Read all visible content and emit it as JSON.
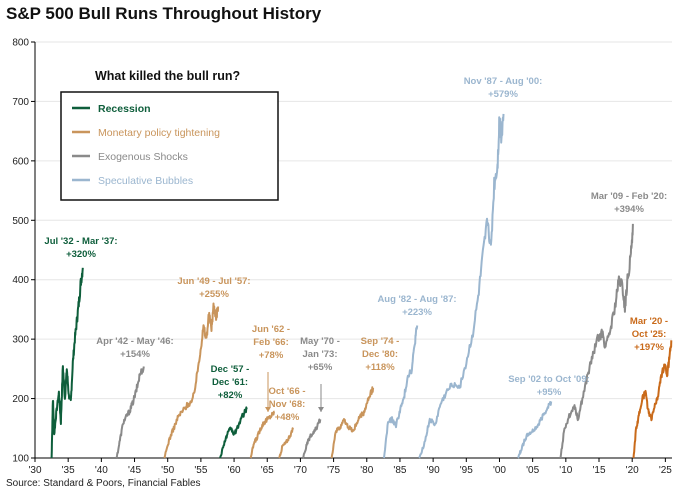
{
  "title": "S&P 500 Bull Runs Throughout History",
  "source": "Source: Standard & Poors, Financial Fables",
  "colors": {
    "recession": "#0e5e3b",
    "monetary": "#c9955c",
    "exogenous": "#8a8a8a",
    "bubble": "#9bb6cf",
    "current": "#c96a1a",
    "axis": "#000000",
    "text": "#222222"
  },
  "legend": {
    "title": "What killed the bull run?",
    "items": [
      {
        "label": "Recession",
        "color": "#0e5e3b"
      },
      {
        "label": "Monetary policy tightening",
        "color": "#c9955c"
      },
      {
        "label": "Exogenous Shocks",
        "color": "#8a8a8a"
      },
      {
        "label": "Speculative Bubbles",
        "color": "#9bb6cf"
      }
    ]
  },
  "chart_data": {
    "type": "line",
    "title": "S&P 500 Bull Runs Throughout History",
    "xlabel": "",
    "ylabel": "",
    "xlim": [
      1930,
      2026
    ],
    "ylim": [
      100,
      800
    ],
    "y_ticks": [
      100,
      200,
      300,
      400,
      500,
      600,
      700,
      800
    ],
    "x_ticks": [
      {
        "year": 1930,
        "label": "'30"
      },
      {
        "year": 1935,
        "label": "'35"
      },
      {
        "year": 1940,
        "label": "'40"
      },
      {
        "year": 1945,
        "label": "'45"
      },
      {
        "year": 1950,
        "label": "'50"
      },
      {
        "year": 1955,
        "label": "'55"
      },
      {
        "year": 1960,
        "label": "'60"
      },
      {
        "year": 1965,
        "label": "'65"
      },
      {
        "year": 1970,
        "label": "'70"
      },
      {
        "year": 1975,
        "label": "'75"
      },
      {
        "year": 1980,
        "label": "'80"
      },
      {
        "year": 1985,
        "label": "'85"
      },
      {
        "year": 1990,
        "label": "'90"
      },
      {
        "year": 1995,
        "label": "'95"
      },
      {
        "year": 2000,
        "label": "'00"
      },
      {
        "year": 2005,
        "label": "'05"
      },
      {
        "year": 2010,
        "label": "'10"
      },
      {
        "year": 2015,
        "label": "'15"
      },
      {
        "year": 2020,
        "label": "'20"
      },
      {
        "year": 2025,
        "label": "'25"
      }
    ],
    "series": [
      {
        "name": "Jul '32 - Mar '37",
        "gain": "+320%",
        "cause": "recession",
        "points": [
          [
            1932.5,
            100
          ],
          [
            1932.7,
            200
          ],
          [
            1932.9,
            140
          ],
          [
            1933.2,
            175
          ],
          [
            1933.6,
            210
          ],
          [
            1933.9,
            160
          ],
          [
            1934.2,
            255
          ],
          [
            1934.5,
            200
          ],
          [
            1934.8,
            250
          ],
          [
            1935.1,
            205
          ],
          [
            1935.4,
            195
          ],
          [
            1935.7,
            260
          ],
          [
            1936.0,
            300
          ],
          [
            1936.3,
            330
          ],
          [
            1936.6,
            360
          ],
          [
            1936.9,
            395
          ],
          [
            1937.2,
            420
          ]
        ]
      },
      {
        "name": "Apr '42 - May '46",
        "gain": "+154%",
        "cause": "exogenous",
        "points": [
          [
            1942.3,
            100
          ],
          [
            1942.8,
            130
          ],
          [
            1943.3,
            160
          ],
          [
            1943.8,
            170
          ],
          [
            1944.3,
            180
          ],
          [
            1944.8,
            195
          ],
          [
            1945.3,
            215
          ],
          [
            1945.8,
            240
          ],
          [
            1946.4,
            254
          ]
        ]
      },
      {
        "name": "Jun '49 - Jul '57",
        "gain": "+255%",
        "cause": "monetary",
        "points": [
          [
            1949.5,
            100
          ],
          [
            1950.2,
            130
          ],
          [
            1950.9,
            150
          ],
          [
            1951.6,
            170
          ],
          [
            1952.3,
            180
          ],
          [
            1953.0,
            190
          ],
          [
            1953.7,
            195
          ],
          [
            1954.3,
            230
          ],
          [
            1954.9,
            280
          ],
          [
            1955.4,
            320
          ],
          [
            1955.8,
            300
          ],
          [
            1956.2,
            340
          ],
          [
            1956.6,
            320
          ],
          [
            1956.9,
            355
          ],
          [
            1957.3,
            340
          ],
          [
            1957.6,
            355
          ]
        ]
      },
      {
        "name": "Dec '57 - Dec '61",
        "gain": "+82%",
        "cause": "recession",
        "points": [
          [
            1957.9,
            100
          ],
          [
            1958.5,
            125
          ],
          [
            1959.0,
            140
          ],
          [
            1959.5,
            150
          ],
          [
            1960.0,
            140
          ],
          [
            1960.5,
            150
          ],
          [
            1961.0,
            165
          ],
          [
            1961.5,
            175
          ],
          [
            1961.9,
            182
          ]
        ]
      },
      {
        "name": "Jun '62 - Feb '66",
        "gain": "+78%",
        "cause": "monetary",
        "points": [
          [
            1962.5,
            100
          ],
          [
            1963.0,
            125
          ],
          [
            1963.5,
            135
          ],
          [
            1964.0,
            150
          ],
          [
            1964.5,
            160
          ],
          [
            1965.0,
            165
          ],
          [
            1965.5,
            170
          ],
          [
            1966.1,
            178
          ]
        ]
      },
      {
        "name": "Oct '66 - Nov '68",
        "gain": "+48%",
        "cause": "monetary",
        "points": [
          [
            1966.8,
            100
          ],
          [
            1967.3,
            120
          ],
          [
            1967.8,
            125
          ],
          [
            1968.3,
            135
          ],
          [
            1968.9,
            148
          ]
        ]
      },
      {
        "name": "May '70 - Jan '73",
        "gain": "+65%",
        "cause": "exogenous",
        "points": [
          [
            1970.4,
            100
          ],
          [
            1970.9,
            120
          ],
          [
            1971.4,
            135
          ],
          [
            1971.9,
            140
          ],
          [
            1972.4,
            150
          ],
          [
            1973.0,
            165
          ]
        ]
      },
      {
        "name": "Sep '74 - Dec '80",
        "gain": "+118%",
        "cause": "monetary",
        "points": [
          [
            1974.7,
            100
          ],
          [
            1975.3,
            145
          ],
          [
            1975.9,
            150
          ],
          [
            1976.5,
            165
          ],
          [
            1977.0,
            155
          ],
          [
            1977.5,
            150
          ],
          [
            1978.0,
            145
          ],
          [
            1978.5,
            160
          ],
          [
            1979.0,
            170
          ],
          [
            1979.5,
            175
          ],
          [
            1980.0,
            190
          ],
          [
            1980.5,
            205
          ],
          [
            1980.95,
            218
          ]
        ]
      },
      {
        "name": "Aug '82 - Aug '87",
        "gain": "+223%",
        "cause": "bubble",
        "points": [
          [
            1982.6,
            100
          ],
          [
            1983.2,
            160
          ],
          [
            1983.8,
            165
          ],
          [
            1984.4,
            155
          ],
          [
            1985.0,
            180
          ],
          [
            1985.6,
            200
          ],
          [
            1986.2,
            240
          ],
          [
            1986.8,
            250
          ],
          [
            1987.3,
            300
          ],
          [
            1987.6,
            323
          ]
        ]
      },
      {
        "name": "Nov '87 - Aug '00",
        "gain": "+579%",
        "cause": "bubble",
        "points": [
          [
            1987.9,
            100
          ],
          [
            1988.7,
            125
          ],
          [
            1989.5,
            165
          ],
          [
            1990.3,
            155
          ],
          [
            1991.1,
            190
          ],
          [
            1992.0,
            210
          ],
          [
            1993.0,
            225
          ],
          [
            1994.0,
            220
          ],
          [
            1995.0,
            260
          ],
          [
            1996.0,
            310
          ],
          [
            1996.8,
            370
          ],
          [
            1997.5,
            440
          ],
          [
            1998.2,
            500
          ],
          [
            1998.7,
            450
          ],
          [
            1999.2,
            560
          ],
          [
            1999.7,
            590
          ],
          [
            2000.0,
            670
          ],
          [
            2000.3,
            640
          ],
          [
            2000.6,
            679
          ]
        ]
      },
      {
        "name": "Sep '02 to Oct '09",
        "gain": "+95%",
        "cause": "bubble",
        "points": [
          [
            2002.8,
            100
          ],
          [
            2003.3,
            115
          ],
          [
            2003.8,
            130
          ],
          [
            2004.3,
            140
          ],
          [
            2005.0,
            145
          ],
          [
            2005.8,
            155
          ],
          [
            2006.5,
            170
          ],
          [
            2007.2,
            185
          ],
          [
            2007.8,
            195
          ]
        ]
      },
      {
        "name": "Mar '09 - Feb '20",
        "gain": "+394%",
        "cause": "exogenous",
        "points": [
          [
            2009.2,
            100
          ],
          [
            2009.8,
            150
          ],
          [
            2010.5,
            170
          ],
          [
            2011.3,
            190
          ],
          [
            2011.8,
            165
          ],
          [
            2012.5,
            200
          ],
          [
            2013.3,
            240
          ],
          [
            2014.0,
            270
          ],
          [
            2014.8,
            300
          ],
          [
            2015.5,
            310
          ],
          [
            2016.0,
            285
          ],
          [
            2016.8,
            320
          ],
          [
            2017.5,
            360
          ],
          [
            2018.0,
            400
          ],
          [
            2018.5,
            390
          ],
          [
            2018.9,
            350
          ],
          [
            2019.3,
            400
          ],
          [
            2019.8,
            440
          ],
          [
            2020.1,
            494
          ]
        ]
      },
      {
        "name": "Mar '20 - Oct '25",
        "gain": "+197%",
        "cause": "current",
        "points": [
          [
            2020.2,
            100
          ],
          [
            2020.6,
            150
          ],
          [
            2021.0,
            170
          ],
          [
            2021.5,
            200
          ],
          [
            2022.0,
            210
          ],
          [
            2022.5,
            175
          ],
          [
            2022.9,
            165
          ],
          [
            2023.3,
            185
          ],
          [
            2023.8,
            200
          ],
          [
            2024.3,
            235
          ],
          [
            2024.9,
            255
          ],
          [
            2025.3,
            240
          ],
          [
            2025.6,
            270
          ],
          [
            2025.9,
            298
          ]
        ]
      }
    ],
    "annotations": [
      {
        "lines": [
          "Jul '32 - Mar '37:",
          "+320%"
        ],
        "color": "#0e5e3b"
      },
      {
        "lines": [
          "Apr '42 - May '46:",
          "+154%"
        ],
        "color": "#8a8a8a"
      },
      {
        "lines": [
          "Jun '49 - Jul '57:",
          "+255%"
        ],
        "color": "#c9955c"
      },
      {
        "lines": [
          "Dec '57 -",
          "Dec '61:",
          "+82%"
        ],
        "color": "#0e5e3b"
      },
      {
        "lines": [
          "Jun '62 -",
          "Feb '66:",
          "+78%"
        ],
        "color": "#c9955c"
      },
      {
        "lines": [
          "Oct '66 -",
          "Nov '68:",
          "+48%"
        ],
        "color": "#c9955c"
      },
      {
        "lines": [
          "May '70 -",
          "Jan '73:",
          "+65%"
        ],
        "color": "#8a8a8a"
      },
      {
        "lines": [
          "Sep '74 -",
          "Dec '80:",
          "+118%"
        ],
        "color": "#c9955c"
      },
      {
        "lines": [
          "Aug '82 - Aug '87:",
          "+223%"
        ],
        "color": "#9bb6cf"
      },
      {
        "lines": [
          "Nov '87 - Aug '00:",
          "+579%"
        ],
        "color": "#9bb6cf"
      },
      {
        "lines": [
          "Sep '02 to Oct '09:",
          "+95%"
        ],
        "color": "#9bb6cf"
      },
      {
        "lines": [
          "Mar '09 - Feb '20:",
          "+394%"
        ],
        "color": "#8a8a8a"
      },
      {
        "lines": [
          "Mar '20 -",
          "Oct '25:",
          "+197%"
        ],
        "color": "#c96a1a"
      }
    ]
  }
}
